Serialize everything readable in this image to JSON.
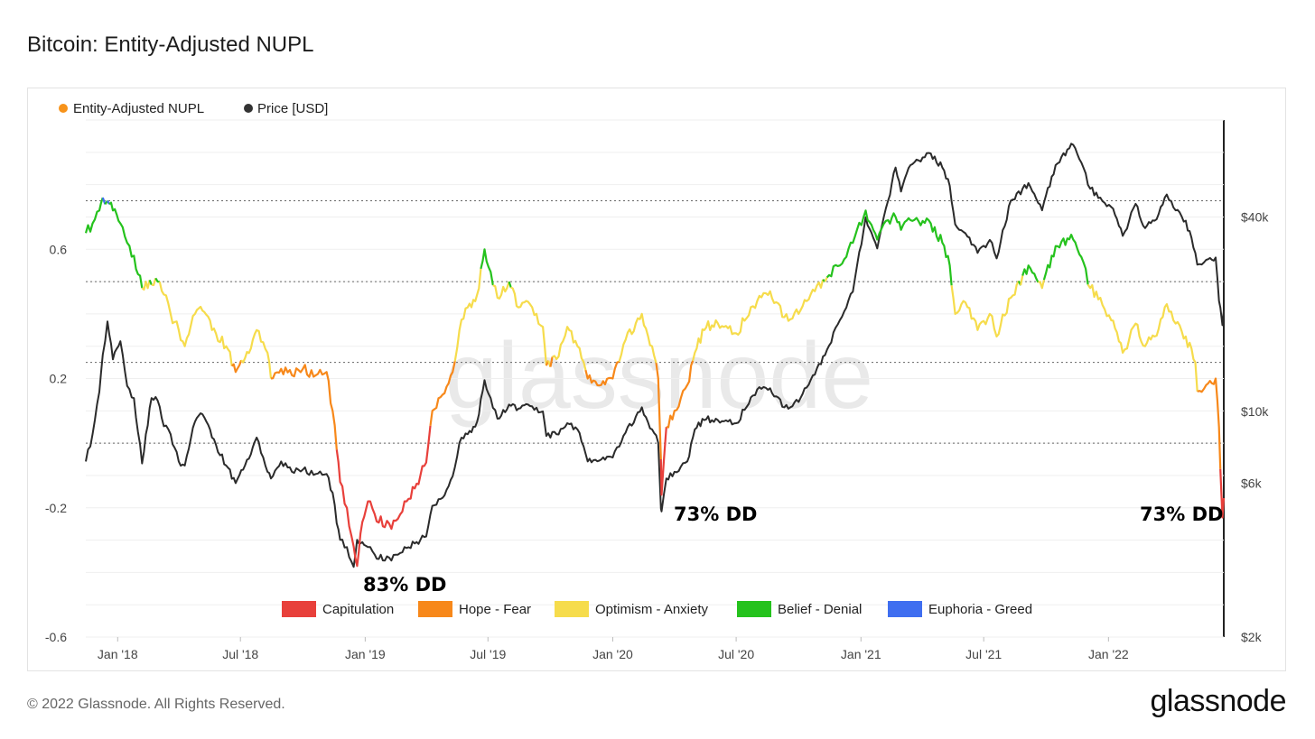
{
  "title": "Bitcoin: Entity-Adjusted NUPL",
  "footer": {
    "copyright": "© 2022 Glassnode. All Rights Reserved.",
    "logo": "glassnode"
  },
  "watermark": "glassnode",
  "chart_data": {
    "type": "line",
    "series": [
      {
        "name": "Entity-Adjusted NUPL",
        "legend_color": "#f7931a",
        "axis": "left"
      },
      {
        "name": "Price [USD]",
        "legend_color": "#333333",
        "axis": "right"
      }
    ],
    "zones": [
      {
        "name": "Capitulation",
        "color": "#e8403b",
        "range": [
          -1,
          0
        ]
      },
      {
        "name": "Hope - Fear",
        "color": "#f7881a",
        "range": [
          0,
          0.25
        ]
      },
      {
        "name": "Optimism - Anxiety",
        "color": "#f6dc4c",
        "range": [
          0.25,
          0.5
        ]
      },
      {
        "name": "Belief - Denial",
        "color": "#25c21d",
        "range": [
          0.5,
          0.75
        ]
      },
      {
        "name": "Euphoria - Greed",
        "color": "#3f6ef0",
        "range": [
          0.75,
          1
        ]
      }
    ],
    "x_ticks": [
      "Jan '18",
      "Jul '18",
      "Jan '19",
      "Jul '19",
      "Jan '20",
      "Jul '20",
      "Jan '21",
      "Jul '21",
      "Jan '22"
    ],
    "x_range": [
      "2017-11-15",
      "2022-06-20"
    ],
    "y_left": {
      "ticks": [
        0.6,
        0.2,
        -0.2,
        -0.6
      ],
      "range": [
        -0.6,
        1.0
      ]
    },
    "y_right": {
      "ticks": [
        "$40k",
        "$10k",
        "$6k",
        "$2k"
      ],
      "tick_values": [
        40000,
        10000,
        6000,
        2000
      ],
      "scale": "log",
      "range": [
        2000,
        80000
      ]
    },
    "reference_lines": [
      0.75,
      0.5,
      0.25,
      0.0
    ],
    "annotations": [
      {
        "text": "83% DD",
        "date": "2018-12-20"
      },
      {
        "text": "73% DD",
        "date": "2020-03-15"
      },
      {
        "text": "73% DD",
        "date": "2022-06-18"
      }
    ],
    "nupl_points": [
      [
        "2017-11-15",
        0.65
      ],
      [
        "2017-11-25",
        0.68
      ],
      [
        "2017-12-05",
        0.72
      ],
      [
        "2017-12-10",
        0.76
      ],
      [
        "2017-12-17",
        0.75
      ],
      [
        "2017-12-25",
        0.72
      ],
      [
        "2018-01-05",
        0.68
      ],
      [
        "2018-01-15",
        0.62
      ],
      [
        "2018-01-25",
        0.58
      ],
      [
        "2018-02-06",
        0.48
      ],
      [
        "2018-02-20",
        0.49
      ],
      [
        "2018-03-01",
        0.5
      ],
      [
        "2018-03-10",
        0.46
      ],
      [
        "2018-03-20",
        0.4
      ],
      [
        "2018-04-01",
        0.35
      ],
      [
        "2018-04-10",
        0.3
      ],
      [
        "2018-04-25",
        0.4
      ],
      [
        "2018-05-06",
        0.41
      ],
      [
        "2018-05-20",
        0.35
      ],
      [
        "2018-06-10",
        0.3
      ],
      [
        "2018-06-24",
        0.22
      ],
      [
        "2018-07-05",
        0.25
      ],
      [
        "2018-07-25",
        0.35
      ],
      [
        "2018-08-10",
        0.28
      ],
      [
        "2018-08-15",
        0.2
      ],
      [
        "2018-08-30",
        0.23
      ],
      [
        "2018-09-15",
        0.21
      ],
      [
        "2018-10-01",
        0.23
      ],
      [
        "2018-10-20",
        0.21
      ],
      [
        "2018-11-05",
        0.22
      ],
      [
        "2018-11-14",
        0.1
      ],
      [
        "2018-11-20",
        -0.02
      ],
      [
        "2018-11-25",
        -0.12
      ],
      [
        "2018-12-05",
        -0.2
      ],
      [
        "2018-12-15",
        -0.32
      ],
      [
        "2018-12-20",
        -0.38
      ],
      [
        "2018-12-25",
        -0.28
      ],
      [
        "2019-01-05",
        -0.18
      ],
      [
        "2019-01-15",
        -0.22
      ],
      [
        "2019-01-30",
        -0.26
      ],
      [
        "2019-02-15",
        -0.24
      ],
      [
        "2019-02-28",
        -0.18
      ],
      [
        "2019-03-15",
        -0.14
      ],
      [
        "2019-04-01",
        -0.06
      ],
      [
        "2019-04-10",
        0.1
      ],
      [
        "2019-04-25",
        0.15
      ],
      [
        "2019-05-10",
        0.22
      ],
      [
        "2019-05-20",
        0.35
      ],
      [
        "2019-06-01",
        0.42
      ],
      [
        "2019-06-15",
        0.46
      ],
      [
        "2019-06-26",
        0.6
      ],
      [
        "2019-07-05",
        0.53
      ],
      [
        "2019-07-15",
        0.45
      ],
      [
        "2019-08-01",
        0.5
      ],
      [
        "2019-08-15",
        0.42
      ],
      [
        "2019-09-01",
        0.43
      ],
      [
        "2019-09-20",
        0.36
      ],
      [
        "2019-09-25",
        0.24
      ],
      [
        "2019-10-10",
        0.26
      ],
      [
        "2019-10-26",
        0.36
      ],
      [
        "2019-11-10",
        0.3
      ],
      [
        "2019-11-25",
        0.2
      ],
      [
        "2019-12-15",
        0.18
      ],
      [
        "2020-01-01",
        0.2
      ],
      [
        "2020-01-20",
        0.32
      ],
      [
        "2020-02-13",
        0.4
      ],
      [
        "2020-02-28",
        0.3
      ],
      [
        "2020-03-08",
        0.2
      ],
      [
        "2020-03-12",
        -0.05
      ],
      [
        "2020-03-13",
        -0.16
      ],
      [
        "2020-03-20",
        0.05
      ],
      [
        "2020-04-01",
        0.1
      ],
      [
        "2020-04-20",
        0.18
      ],
      [
        "2020-05-01",
        0.28
      ],
      [
        "2020-05-15",
        0.35
      ],
      [
        "2020-06-01",
        0.38
      ],
      [
        "2020-07-01",
        0.34
      ],
      [
        "2020-08-01",
        0.44
      ],
      [
        "2020-08-20",
        0.47
      ],
      [
        "2020-09-10",
        0.39
      ],
      [
        "2020-10-01",
        0.4
      ],
      [
        "2020-10-25",
        0.47
      ],
      [
        "2020-11-15",
        0.52
      ],
      [
        "2020-12-01",
        0.55
      ],
      [
        "2020-12-20",
        0.62
      ],
      [
        "2021-01-08",
        0.72
      ],
      [
        "2021-01-25",
        0.63
      ],
      [
        "2021-02-10",
        0.69
      ],
      [
        "2021-02-21",
        0.7
      ],
      [
        "2021-03-01",
        0.66
      ],
      [
        "2021-03-15",
        0.69
      ],
      [
        "2021-04-14",
        0.68
      ],
      [
        "2021-05-01",
        0.62
      ],
      [
        "2021-05-12",
        0.55
      ],
      [
        "2021-05-20",
        0.4
      ],
      [
        "2021-06-01",
        0.44
      ],
      [
        "2021-06-22",
        0.35
      ],
      [
        "2021-07-10",
        0.4
      ],
      [
        "2021-07-20",
        0.33
      ],
      [
        "2021-08-10",
        0.45
      ],
      [
        "2021-09-05",
        0.55
      ],
      [
        "2021-09-25",
        0.48
      ],
      [
        "2021-10-15",
        0.61
      ],
      [
        "2021-11-10",
        0.63
      ],
      [
        "2021-11-25",
        0.56
      ],
      [
        "2021-12-05",
        0.48
      ],
      [
        "2021-12-20",
        0.45
      ],
      [
        "2022-01-05",
        0.38
      ],
      [
        "2022-01-22",
        0.28
      ],
      [
        "2022-02-10",
        0.37
      ],
      [
        "2022-02-24",
        0.3
      ],
      [
        "2022-03-10",
        0.33
      ],
      [
        "2022-03-28",
        0.43
      ],
      [
        "2022-04-10",
        0.37
      ],
      [
        "2022-04-25",
        0.33
      ],
      [
        "2022-05-09",
        0.25
      ],
      [
        "2022-05-12",
        0.16
      ],
      [
        "2022-05-25",
        0.18
      ],
      [
        "2022-06-08",
        0.2
      ],
      [
        "2022-06-13",
        0.05
      ],
      [
        "2022-06-15",
        -0.08
      ],
      [
        "2022-06-18",
        -0.23
      ],
      [
        "2022-06-20",
        -0.17
      ]
    ],
    "price_points": [
      [
        "2017-11-15",
        7000
      ],
      [
        "2017-11-25",
        8500
      ],
      [
        "2017-12-05",
        11500
      ],
      [
        "2017-12-10",
        15000
      ],
      [
        "2017-12-17",
        19000
      ],
      [
        "2017-12-25",
        14500
      ],
      [
        "2018-01-05",
        16500
      ],
      [
        "2018-01-15",
        12000
      ],
      [
        "2018-01-25",
        11000
      ],
      [
        "2018-02-06",
        6900
      ],
      [
        "2018-02-20",
        11000
      ],
      [
        "2018-03-01",
        10800
      ],
      [
        "2018-03-10",
        9000
      ],
      [
        "2018-03-20",
        8500
      ],
      [
        "2018-04-01",
        7000
      ],
      [
        "2018-04-10",
        6800
      ],
      [
        "2018-04-25",
        9300
      ],
      [
        "2018-05-06",
        9800
      ],
      [
        "2018-05-20",
        8300
      ],
      [
        "2018-06-10",
        6800
      ],
      [
        "2018-06-24",
        6000
      ],
      [
        "2018-07-05",
        6600
      ],
      [
        "2018-07-25",
        8300
      ],
      [
        "2018-08-10",
        6500
      ],
      [
        "2018-08-15",
        6200
      ],
      [
        "2018-08-30",
        7000
      ],
      [
        "2018-09-15",
        6500
      ],
      [
        "2018-10-01",
        6600
      ],
      [
        "2018-10-20",
        6400
      ],
      [
        "2018-11-05",
        6400
      ],
      [
        "2018-11-14",
        5600
      ],
      [
        "2018-11-20",
        4500
      ],
      [
        "2018-11-25",
        4000
      ],
      [
        "2018-12-05",
        3800
      ],
      [
        "2018-12-15",
        3300
      ],
      [
        "2018-12-20",
        4000
      ],
      [
        "2018-12-25",
        3900
      ],
      [
        "2019-01-05",
        3800
      ],
      [
        "2019-01-15",
        3600
      ],
      [
        "2019-01-30",
        3450
      ],
      [
        "2019-02-15",
        3600
      ],
      [
        "2019-02-28",
        3800
      ],
      [
        "2019-03-15",
        3900
      ],
      [
        "2019-04-01",
        4100
      ],
      [
        "2019-04-10",
        5100
      ],
      [
        "2019-04-25",
        5400
      ],
      [
        "2019-05-10",
        6300
      ],
      [
        "2019-05-20",
        8000
      ],
      [
        "2019-06-01",
        8500
      ],
      [
        "2019-06-15",
        9300
      ],
      [
        "2019-06-26",
        12500
      ],
      [
        "2019-07-05",
        11000
      ],
      [
        "2019-07-15",
        9500
      ],
      [
        "2019-08-01",
        10500
      ],
      [
        "2019-08-15",
        10200
      ],
      [
        "2019-09-01",
        10400
      ],
      [
        "2019-09-20",
        10000
      ],
      [
        "2019-09-25",
        8400
      ],
      [
        "2019-10-10",
        8500
      ],
      [
        "2019-10-26",
        9200
      ],
      [
        "2019-11-10",
        8800
      ],
      [
        "2019-11-25",
        7000
      ],
      [
        "2019-12-15",
        7100
      ],
      [
        "2020-01-01",
        7200
      ],
      [
        "2020-01-20",
        8600
      ],
      [
        "2020-02-13",
        10300
      ],
      [
        "2020-02-28",
        8800
      ],
      [
        "2020-03-08",
        8000
      ],
      [
        "2020-03-12",
        5000
      ],
      [
        "2020-03-13",
        4900
      ],
      [
        "2020-03-20",
        6200
      ],
      [
        "2020-04-01",
        6500
      ],
      [
        "2020-04-20",
        7000
      ],
      [
        "2020-05-01",
        8800
      ],
      [
        "2020-05-15",
        9400
      ],
      [
        "2020-06-01",
        9500
      ],
      [
        "2020-07-01",
        9200
      ],
      [
        "2020-08-01",
        11700
      ],
      [
        "2020-08-20",
        11800
      ],
      [
        "2020-09-10",
        10300
      ],
      [
        "2020-10-01",
        10700
      ],
      [
        "2020-10-25",
        13000
      ],
      [
        "2020-11-15",
        16000
      ],
      [
        "2020-12-01",
        19200
      ],
      [
        "2020-12-20",
        23500
      ],
      [
        "2021-01-08",
        40000
      ],
      [
        "2021-01-25",
        32000
      ],
      [
        "2021-02-10",
        45000
      ],
      [
        "2021-02-21",
        57000
      ],
      [
        "2021-03-01",
        48000
      ],
      [
        "2021-03-15",
        58000
      ],
      [
        "2021-04-14",
        63000
      ],
      [
        "2021-05-01",
        57000
      ],
      [
        "2021-05-12",
        50000
      ],
      [
        "2021-05-20",
        38000
      ],
      [
        "2021-06-01",
        36000
      ],
      [
        "2021-06-22",
        31000
      ],
      [
        "2021-07-10",
        34000
      ],
      [
        "2021-07-20",
        29800
      ],
      [
        "2021-08-10",
        45000
      ],
      [
        "2021-09-05",
        51000
      ],
      [
        "2021-09-25",
        42000
      ],
      [
        "2021-10-15",
        58000
      ],
      [
        "2021-11-10",
        67000
      ],
      [
        "2021-11-25",
        57000
      ],
      [
        "2021-12-05",
        49000
      ],
      [
        "2021-12-20",
        46000
      ],
      [
        "2022-01-05",
        43000
      ],
      [
        "2022-01-22",
        35000
      ],
      [
        "2022-02-10",
        44000
      ],
      [
        "2022-02-24",
        37000
      ],
      [
        "2022-03-10",
        39000
      ],
      [
        "2022-03-28",
        47000
      ],
      [
        "2022-04-10",
        42000
      ],
      [
        "2022-04-25",
        39000
      ],
      [
        "2022-05-09",
        31000
      ],
      [
        "2022-05-12",
        28500
      ],
      [
        "2022-05-25",
        29500
      ],
      [
        "2022-06-08",
        30000
      ],
      [
        "2022-06-13",
        22000
      ],
      [
        "2022-06-15",
        21000
      ],
      [
        "2022-06-18",
        18500
      ],
      [
        "2022-06-20",
        20500
      ]
    ]
  }
}
